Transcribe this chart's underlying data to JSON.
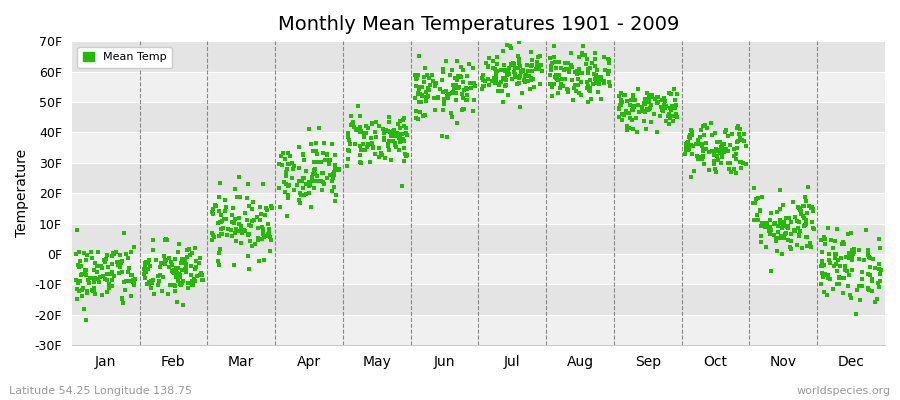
{
  "title": "Monthly Mean Temperatures 1901 - 2009",
  "ylabel": "Temperature",
  "subtitle_left": "Latitude 54.25 Longitude 138.75",
  "subtitle_right": "worldspecies.org",
  "dot_color": "#22bb00",
  "background_color": "#ffffff",
  "plot_bg_color": "#ffffff",
  "band_colors": [
    "#f0f0f0",
    "#e4e4e4"
  ],
  "ylim": [
    -30,
    70
  ],
  "yticks": [
    -30,
    -20,
    -10,
    0,
    10,
    20,
    30,
    40,
    50,
    60,
    70
  ],
  "ytick_labels": [
    "-30F",
    "-20F",
    "-10F",
    "0F",
    "10F",
    "20F",
    "30F",
    "40F",
    "50F",
    "60F",
    "70F"
  ],
  "months": [
    "Jan",
    "Feb",
    "Mar",
    "Apr",
    "May",
    "Jun",
    "Jul",
    "Aug",
    "Sep",
    "Oct",
    "Nov",
    "Dec"
  ],
  "legend_label": "Mean Temp",
  "num_years": 109,
  "monthly_means_F": [
    -7,
    -6,
    10,
    27,
    38,
    53,
    60,
    58,
    48,
    35,
    10,
    -4
  ],
  "monthly_spreads_F": [
    5.5,
    5.0,
    5.5,
    5.5,
    4.5,
    5.0,
    4.0,
    4.0,
    3.5,
    4.5,
    5.5,
    6.0
  ]
}
